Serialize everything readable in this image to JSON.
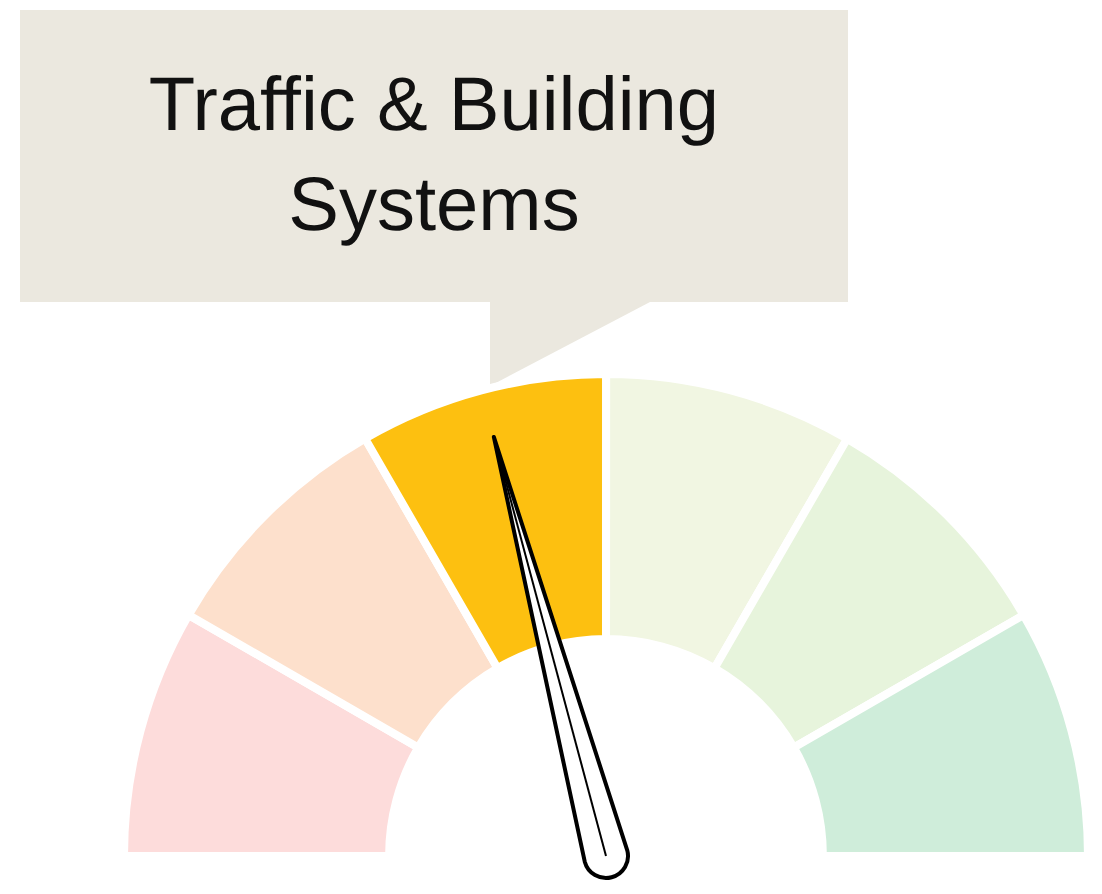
{
  "chart_data": {
    "type": "donut",
    "categories": [
      null,
      null,
      "Traffic & Building Systems",
      null,
      null,
      null
    ],
    "values": [
      16.67,
      16.67,
      16.67,
      16.67,
      16.66,
      16.66
    ],
    "colors": [
      "#fddcdb",
      "#fde0cc",
      "#fdc010",
      "#f1f6e2",
      "#e7f4dc",
      "#cfedda"
    ],
    "needle": "Traffic & Building Systems",
    "legend": false
  }
}
